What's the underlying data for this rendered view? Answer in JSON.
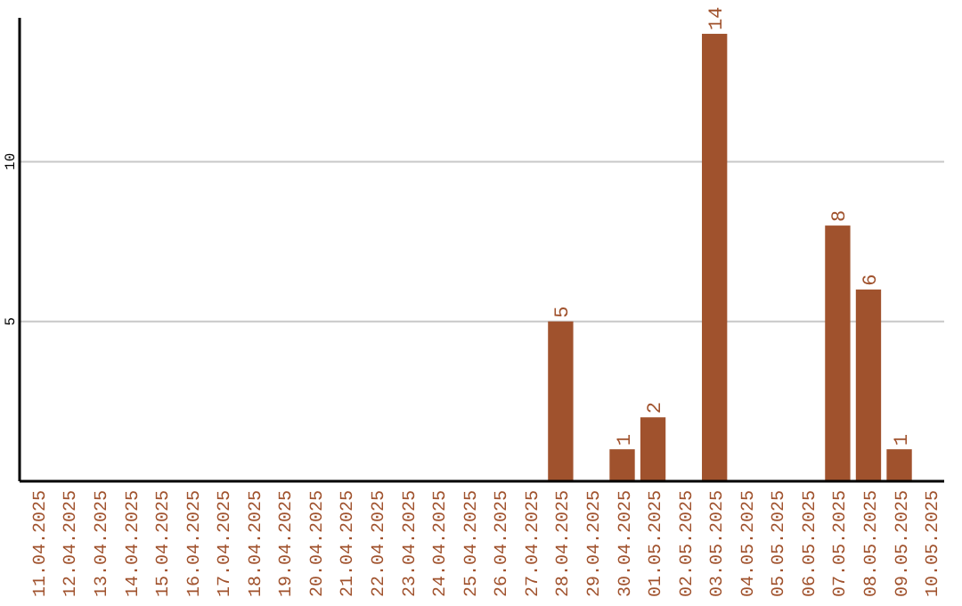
{
  "chart_data": {
    "type": "bar",
    "categories": [
      "11.04.2025",
      "12.04.2025",
      "13.04.2025",
      "14.04.2025",
      "15.04.2025",
      "16.04.2025",
      "17.04.2025",
      "18.04.2025",
      "19.04.2025",
      "20.04.2025",
      "21.04.2025",
      "22.04.2025",
      "23.04.2025",
      "24.04.2025",
      "25.04.2025",
      "26.04.2025",
      "27.04.2025",
      "28.04.2025",
      "29.04.2025",
      "30.04.2025",
      "01.05.2025",
      "02.05.2025",
      "03.05.2025",
      "04.05.2025",
      "05.05.2025",
      "06.05.2025",
      "07.05.2025",
      "08.05.2025",
      "09.05.2025",
      "10.05.2025"
    ],
    "values": [
      null,
      null,
      null,
      null,
      null,
      null,
      null,
      null,
      null,
      null,
      null,
      null,
      null,
      null,
      null,
      null,
      null,
      5,
      null,
      1,
      2,
      null,
      14,
      null,
      null,
      null,
      8,
      6,
      1,
      null
    ],
    "color": "#a0522d",
    "ylim": [
      0,
      14.5
    ],
    "yticks": [
      5,
      10
    ],
    "grid": "y",
    "data_labels": true
  }
}
